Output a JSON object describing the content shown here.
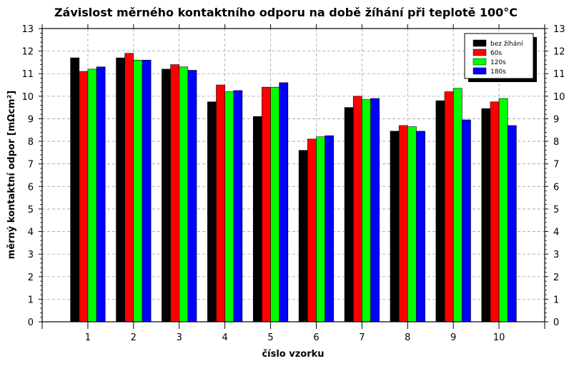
{
  "chart_data": {
    "type": "bar",
    "title": "Závislost měrného kontaktního odporu na době žíhání při teplotě 100°C",
    "xlabel": "číslo vzorku",
    "ylabel": "měrný kontaktní odpor [mΩcm²]",
    "categories": [
      "1",
      "2",
      "3",
      "4",
      "5",
      "6",
      "7",
      "8",
      "9",
      "10"
    ],
    "xlim": [
      0,
      11
    ],
    "ylim": [
      0,
      13
    ],
    "yticks": [
      "0",
      "1",
      "2",
      "3",
      "4",
      "5",
      "6",
      "7",
      "8",
      "9",
      "10",
      "11",
      "12",
      "13"
    ],
    "grid": true,
    "legend_position": "top-right",
    "series": [
      {
        "name": "bez žíhání",
        "color": "#000000",
        "values": [
          11.7,
          11.7,
          11.2,
          9.75,
          9.1,
          7.6,
          9.5,
          8.45,
          9.8,
          9.45
        ]
      },
      {
        "name": "60s",
        "color": "#ff0000",
        "values": [
          11.1,
          11.9,
          11.4,
          10.5,
          10.4,
          8.1,
          10.0,
          8.7,
          10.2,
          9.75
        ]
      },
      {
        "name": "120s",
        "color": "#00ff00",
        "values": [
          11.2,
          11.6,
          11.3,
          10.2,
          10.4,
          8.2,
          9.85,
          8.65,
          10.35,
          9.9
        ]
      },
      {
        "name": "180s",
        "color": "#0000ff",
        "values": [
          11.3,
          11.6,
          11.15,
          10.25,
          10.6,
          8.25,
          9.9,
          8.45,
          8.95,
          8.7
        ]
      }
    ]
  }
}
